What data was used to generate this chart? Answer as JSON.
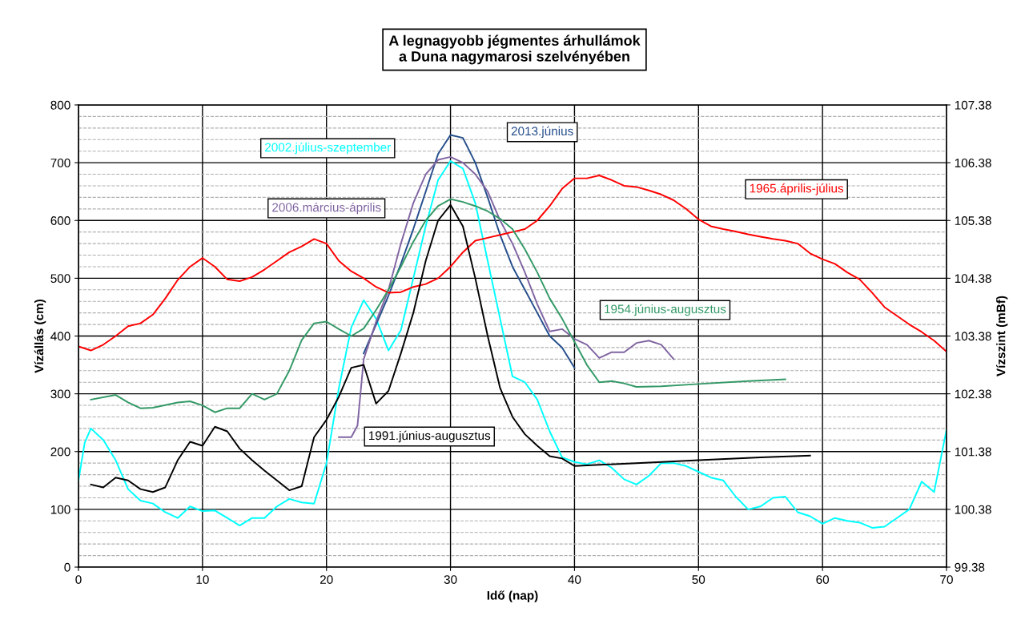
{
  "chart_data": {
    "type": "line",
    "title": "A legnagyobb jégmentes árhullámok\na Duna nagymarosi szelvényében",
    "xlabel": "Idő (nap)",
    "ylabel": "Vízállás (cm)",
    "y2label": "Vízszint (mBf)",
    "xlim": [
      0,
      70
    ],
    "xticks": [
      0,
      10,
      20,
      30,
      40,
      50,
      60,
      70
    ],
    "ylim": [
      0,
      800
    ],
    "yticks": [
      0,
      100,
      200,
      300,
      400,
      500,
      600,
      700,
      800
    ],
    "y2lim": [
      99.38,
      107.38
    ],
    "y2ticks": [
      99.38,
      100.38,
      101.38,
      102.38,
      103.38,
      104.38,
      105.38,
      106.38,
      107.38
    ],
    "grid": true,
    "legend": false,
    "marker": "none",
    "line_style": "solid",
    "series": [
      {
        "name": "2002.július-szeptember",
        "color": "#00ffff",
        "x": [
          0,
          0.5,
          1,
          2,
          3,
          4,
          5,
          6,
          7,
          8,
          9,
          10,
          11,
          12,
          13,
          14,
          15,
          16,
          17,
          18,
          19,
          20,
          21,
          22,
          23,
          24,
          25,
          26,
          27,
          28,
          29,
          30,
          31,
          32,
          33,
          34,
          35,
          36,
          37,
          38,
          39,
          40,
          41,
          42,
          43,
          44,
          45,
          46,
          47,
          48,
          49,
          50,
          51,
          52,
          53,
          54,
          55,
          56,
          57,
          58,
          59,
          60,
          61,
          62,
          63,
          64,
          65,
          66,
          67,
          68,
          69,
          70
        ],
        "values": [
          150,
          215,
          240,
          220,
          185,
          135,
          115,
          110,
          95,
          85,
          105,
          97,
          98,
          85,
          72,
          85,
          85,
          105,
          118,
          112,
          110,
          180,
          310,
          415,
          462,
          430,
          375,
          410,
          500,
          590,
          670,
          703,
          690,
          630,
          530,
          430,
          330,
          320,
          290,
          235,
          190,
          182,
          178,
          185,
          172,
          152,
          143,
          158,
          180,
          180,
          175,
          165,
          155,
          150,
          122,
          100,
          105,
          120,
          122,
          95,
          88,
          75,
          85,
          80,
          77,
          68,
          70,
          85,
          100,
          148,
          130,
          238
        ]
      },
      {
        "name": "2013.június",
        "color": "#254e8c",
        "x": [
          23,
          24,
          25,
          26,
          27,
          28,
          29,
          30,
          31,
          32,
          33,
          34,
          35,
          36,
          37,
          38,
          39,
          40
        ],
        "values": [
          370,
          420,
          470,
          525,
          585,
          650,
          715,
          748,
          743,
          700,
          640,
          575,
          520,
          480,
          440,
          400,
          380,
          345
        ]
      },
      {
        "name": "2006.március-április",
        "color": "#8064a2",
        "x": [
          21,
          22,
          22.5,
          23,
          24,
          25,
          26,
          27,
          28,
          29,
          30,
          31,
          32,
          33,
          34,
          35,
          36,
          37,
          38,
          39,
          40,
          41,
          42,
          43,
          44,
          45,
          46,
          47,
          48
        ],
        "values": [
          225,
          225,
          245,
          360,
          425,
          480,
          560,
          630,
          680,
          705,
          710,
          700,
          680,
          650,
          600,
          560,
          510,
          455,
          408,
          412,
          395,
          385,
          362,
          372,
          372,
          388,
          392,
          385,
          360
        ]
      },
      {
        "name": "1965.április-július",
        "color": "#ff0000",
        "x": [
          0,
          1,
          2,
          3,
          4,
          5,
          6,
          7,
          8,
          9,
          10,
          11,
          12,
          13,
          14,
          15,
          16,
          17,
          18,
          19,
          20,
          21,
          22,
          23,
          24,
          25,
          26,
          27,
          28,
          29,
          30,
          31,
          32,
          33,
          34,
          35,
          36,
          37,
          38,
          39,
          40,
          41,
          42,
          43,
          44,
          45,
          46,
          47,
          48,
          49,
          50,
          51,
          52,
          53,
          54,
          55,
          56,
          57,
          58,
          59,
          60,
          61,
          62,
          63,
          64,
          65,
          66,
          67,
          68,
          69,
          70
        ],
        "values": [
          382,
          375,
          385,
          400,
          417,
          422,
          437,
          465,
          497,
          520,
          535,
          520,
          498,
          495,
          502,
          515,
          530,
          545,
          555,
          568,
          560,
          530,
          512,
          500,
          485,
          475,
          476,
          485,
          490,
          500,
          520,
          545,
          565,
          570,
          575,
          580,
          585,
          600,
          625,
          655,
          673,
          673,
          678,
          670,
          660,
          658,
          652,
          645,
          635,
          620,
          602,
          590,
          585,
          581,
          576,
          572,
          568,
          565,
          560,
          543,
          533,
          525,
          510,
          498,
          475,
          450,
          435,
          420,
          407,
          392,
          373
        ]
      },
      {
        "name": "1954.június-augusztus",
        "color": "#339966",
        "x": [
          1,
          3,
          4,
          5,
          6,
          8,
          9,
          10,
          11,
          12,
          13,
          14,
          15,
          16,
          17,
          18,
          19,
          20,
          21,
          22,
          23,
          24,
          25,
          26,
          27,
          28,
          29,
          30,
          31,
          32,
          33,
          34,
          35,
          36,
          37,
          38,
          39,
          40,
          41,
          42,
          43,
          44,
          45,
          47,
          50,
          54,
          57
        ],
        "values": [
          290,
          298,
          285,
          275,
          276,
          285,
          287,
          280,
          268,
          275,
          275,
          300,
          290,
          300,
          340,
          393,
          422,
          425,
          412,
          400,
          413,
          445,
          480,
          520,
          563,
          600,
          625,
          637,
          632,
          625,
          616,
          603,
          585,
          550,
          510,
          465,
          430,
          390,
          350,
          320,
          322,
          318,
          312,
          313,
          317,
          322,
          325
        ]
      },
      {
        "name": "1991.június-augusztus",
        "color": "#000000",
        "x": [
          1,
          2,
          3,
          4,
          5,
          6,
          7,
          8,
          9,
          10,
          11,
          12,
          13,
          14,
          15,
          16,
          17,
          18,
          19,
          20,
          21,
          22,
          23,
          24,
          25,
          26,
          27,
          28,
          29,
          30,
          31,
          32,
          33,
          34,
          35,
          36,
          37,
          38,
          39,
          40,
          41,
          42,
          45,
          50,
          55,
          59
        ],
        "values": [
          143,
          138,
          155,
          150,
          135,
          130,
          138,
          185,
          217,
          210,
          243,
          235,
          205,
          185,
          167,
          150,
          133,
          140,
          225,
          255,
          295,
          345,
          350,
          283,
          305,
          370,
          440,
          530,
          600,
          627,
          590,
          500,
          400,
          310,
          260,
          230,
          210,
          192,
          188,
          175,
          176,
          177,
          180,
          185,
          190,
          193
        ]
      }
    ]
  }
}
